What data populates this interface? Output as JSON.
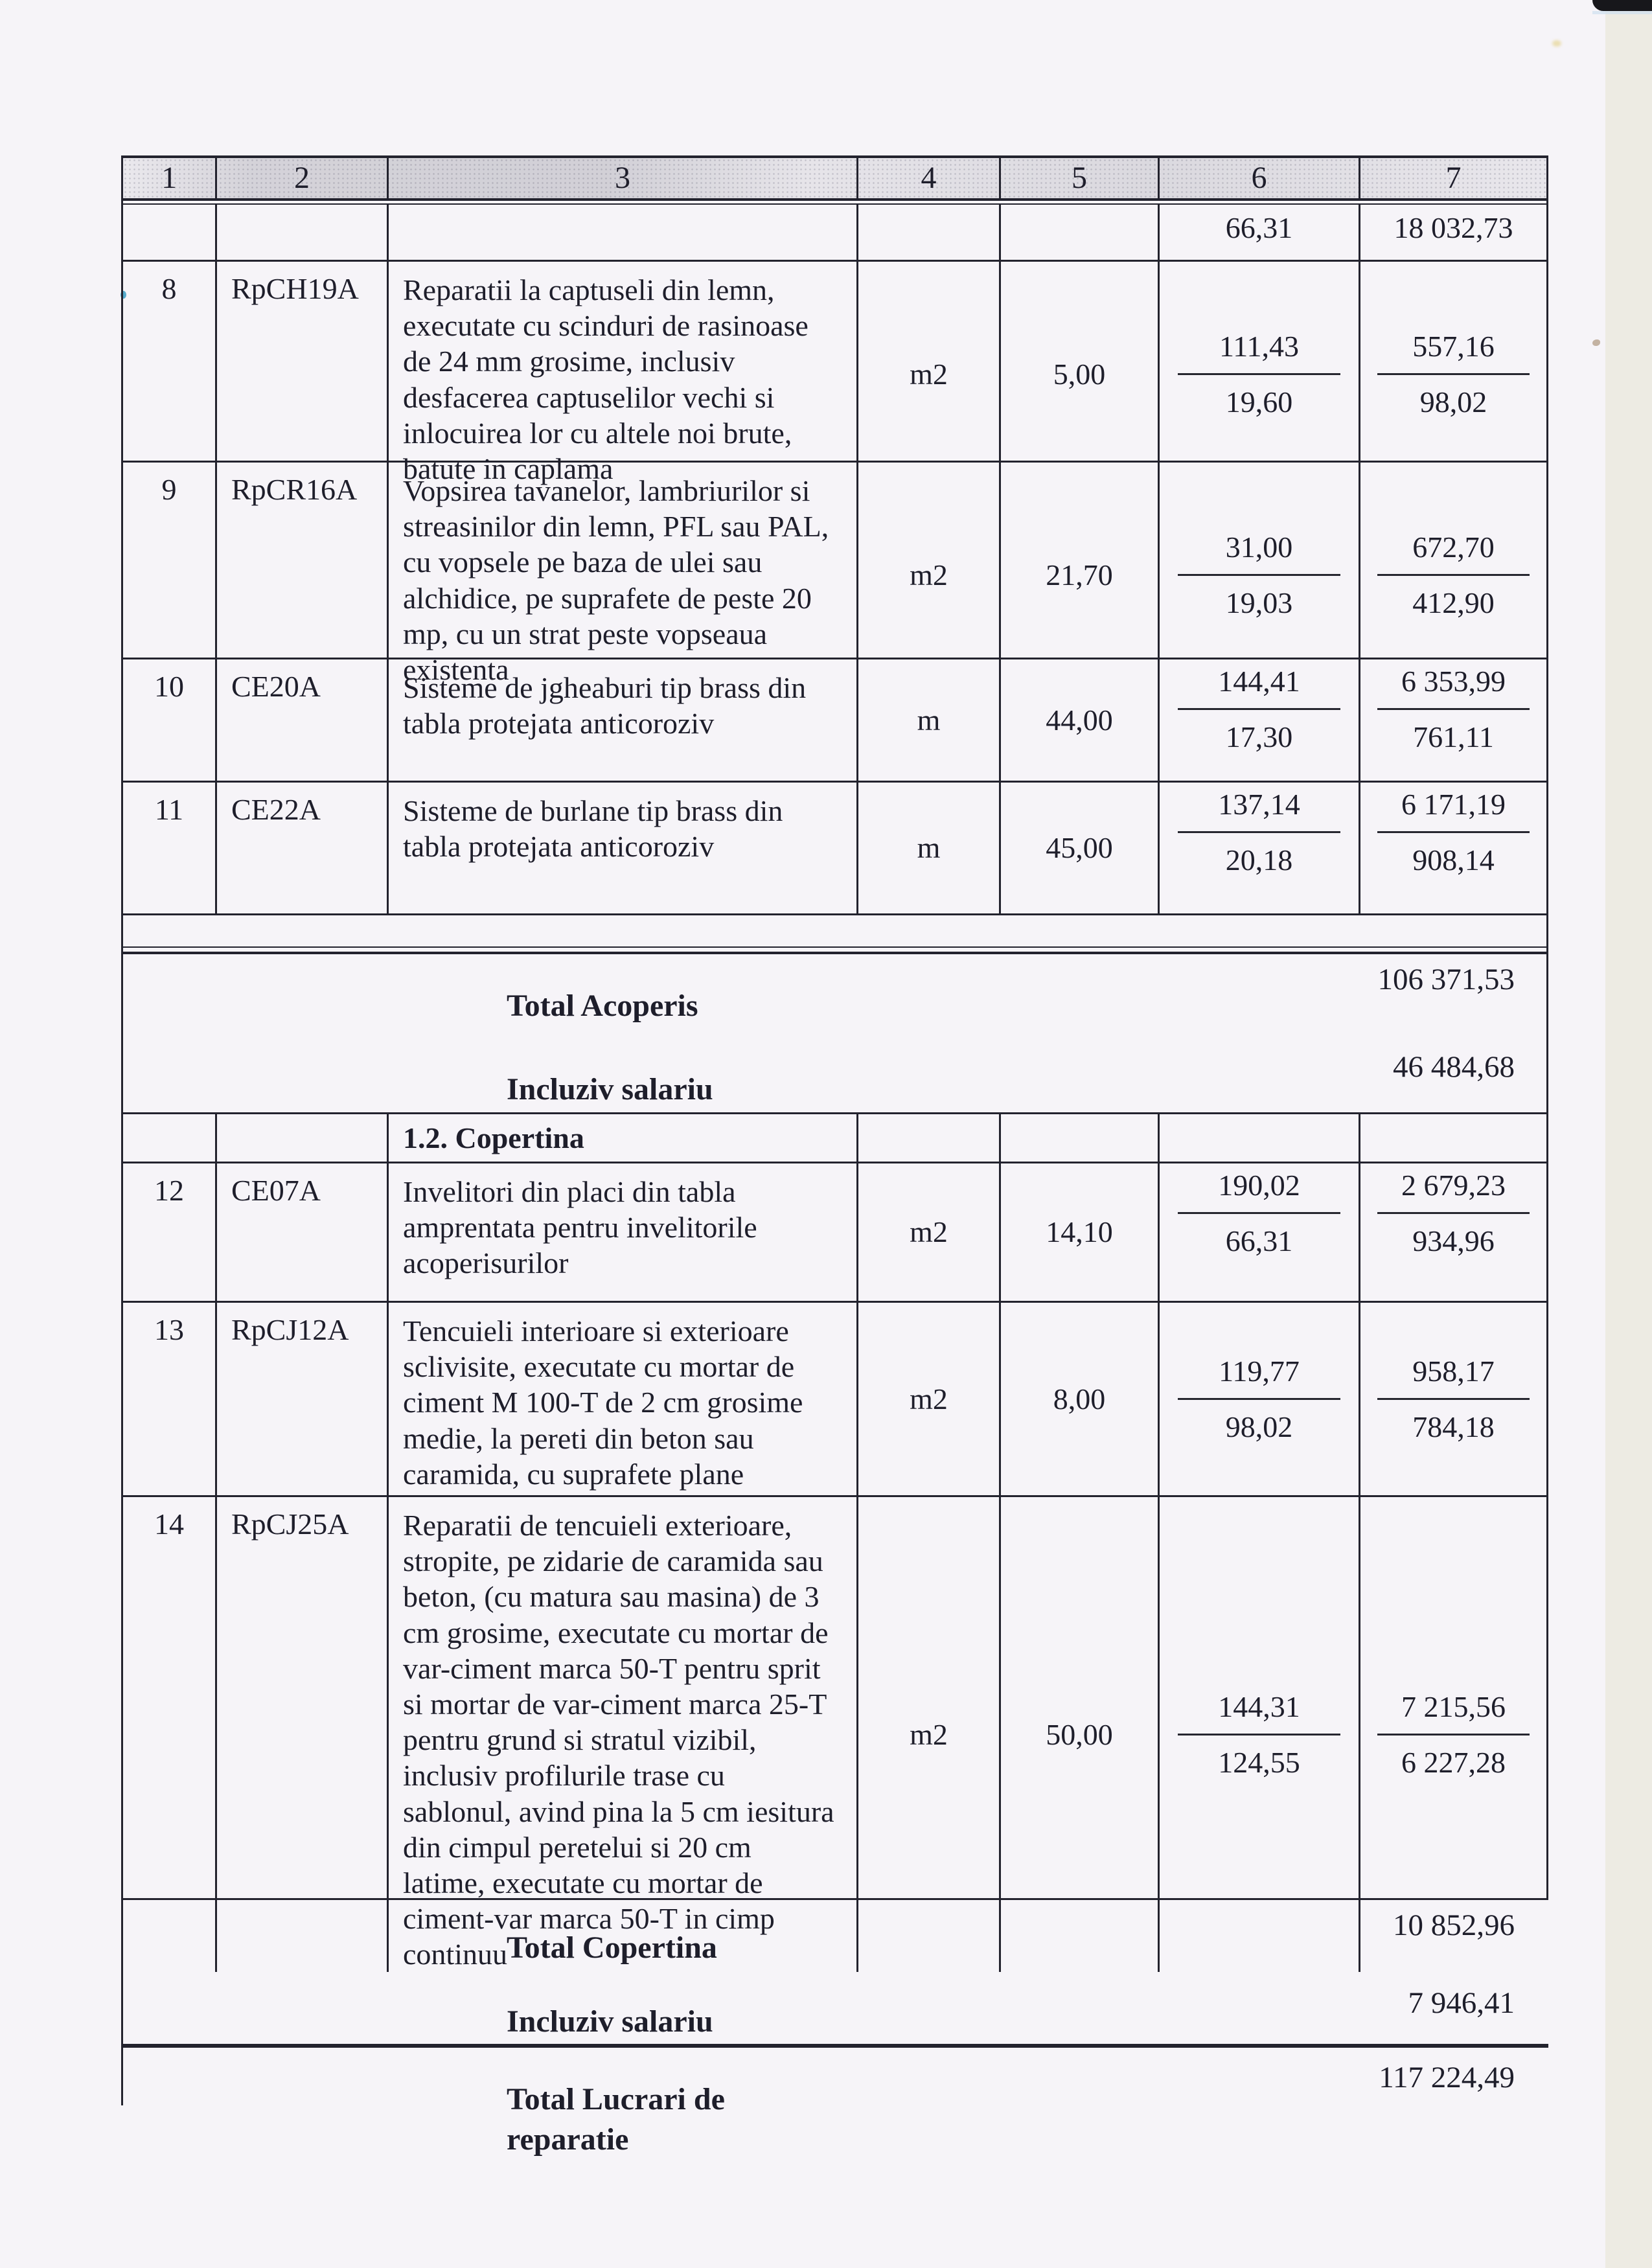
{
  "colors": {
    "paper": "#f6f4f8",
    "ink": "#1e1e2b",
    "rule": "#23232e",
    "scanner_band": "#edebe3"
  },
  "table": {
    "columns": [
      "1",
      "2",
      "3",
      "4",
      "5",
      "6",
      "7"
    ],
    "carryover_row": {
      "unit_price_salary": "66,31",
      "total_salary": "18 032,73"
    },
    "items": [
      {
        "num": "8",
        "code": "RpCH19A",
        "description": "Reparatii la captuseli din lemn, executate cu scinduri de rasinoase de 24 mm grosime, inclusiv desfacerea captuselilor vechi si inlocuirea lor cu altele noi brute, batute in caplama",
        "unit": "m2",
        "quantity": "5,00",
        "unit_price": "111,43",
        "unit_price_salary": "19,60",
        "total": "557,16",
        "total_salary": "98,02"
      },
      {
        "num": "9",
        "code": "RpCR16A",
        "description": "Vopsirea tavanelor, lambriurilor si streasinilor din lemn, PFL sau PAL, cu vopsele pe baza de ulei sau alchidice, pe suprafete de peste 20 mp, cu un strat peste vopseaua existenta",
        "unit": "m2",
        "quantity": "21,70",
        "unit_price": "31,00",
        "unit_price_salary": "19,03",
        "total": "672,70",
        "total_salary": "412,90"
      },
      {
        "num": "10",
        "code": "CE20A",
        "description": "Sisteme de jgheaburi tip brass din tabla protejata anticoroziv",
        "unit": "m",
        "quantity": "44,00",
        "unit_price": "144,41",
        "unit_price_salary": "17,30",
        "total": "6 353,99",
        "total_salary": "761,11"
      },
      {
        "num": "11",
        "code": "CE22A",
        "description": "Sisteme de burlane tip brass din tabla protejata anticoroziv",
        "unit": "m",
        "quantity": "45,00",
        "unit_price": "137,14",
        "unit_price_salary": "20,18",
        "total": "6 171,19",
        "total_salary": "908,14"
      },
      {
        "num": "12",
        "code": "CE07A",
        "description": "Invelitori din placi din tabla amprentata pentru invelitorile acoperisurilor",
        "unit": "m2",
        "quantity": "14,10",
        "unit_price": "190,02",
        "unit_price_salary": "66,31",
        "total": "2 679,23",
        "total_salary": "934,96"
      },
      {
        "num": "13",
        "code": "RpCJ12A",
        "description": "Tencuieli interioare si exterioare sclivisite, executate cu mortar de ciment M 100-T de 2 cm grosime medie, la pereti din beton sau caramida, cu suprafete plane",
        "unit": "m2",
        "quantity": "8,00",
        "unit_price": "119,77",
        "unit_price_salary": "98,02",
        "total": "958,17",
        "total_salary": "784,18"
      },
      {
        "num": "14",
        "code": "RpCJ25A",
        "description": "Reparatii de tencuieli exterioare, stropite, pe zidarie de caramida sau beton, (cu matura sau masina) de 3 cm grosime, executate cu mortar de var-ciment marca 50-T pentru sprit si mortar de var-ciment marca 25-T pentru grund si stratul vizibil, inclusiv profilurile trase cu sablonul, avind pina la 5 cm iesitura din cimpul peretelui si 20 cm latime, executate cu mortar de ciment-var marca 50-T in cimp continuu",
        "unit": "m2",
        "quantity": "50,00",
        "unit_price": "144,31",
        "unit_price_salary": "124,55",
        "total": "7 215,56",
        "total_salary": "6 227,28"
      }
    ]
  },
  "section_copertina": {
    "label": "1.2. Copertina"
  },
  "totals": {
    "acoperis": {
      "total_label": "Total Acoperis",
      "total_value": "106 371,53",
      "salary_label": "Incluziv salariu",
      "salary_value": "46 484,68"
    },
    "copertina": {
      "total_label": "Total Copertina",
      "total_value": "10 852,96",
      "salary_label": "Incluziv salariu",
      "salary_value": "7 946,41"
    },
    "grand": {
      "label": "Total Lucrari de reparatie",
      "value": "117 224,49"
    }
  }
}
